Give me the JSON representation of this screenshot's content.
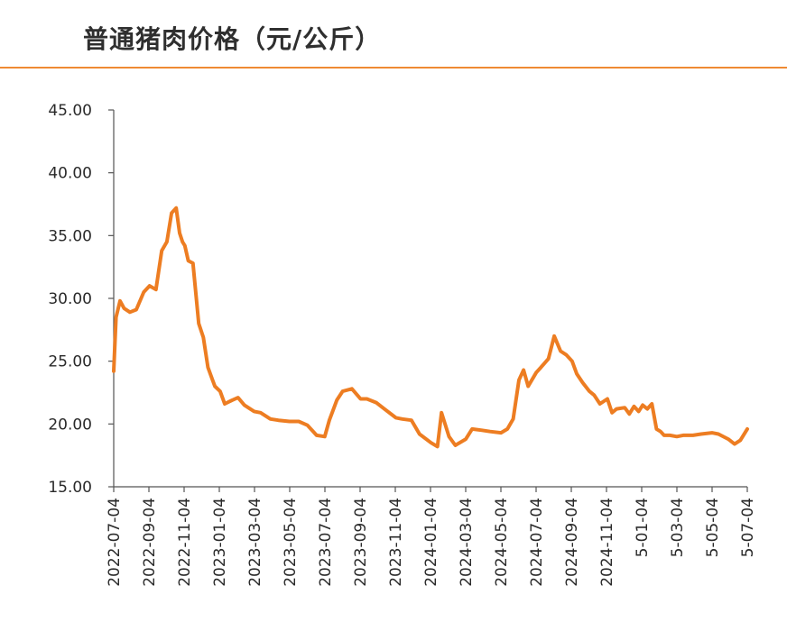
{
  "chart_data": {
    "type": "line",
    "title": "普通猪肉价格（元/公斤）",
    "xlabel": "",
    "ylabel": "",
    "ylim": [
      15,
      45
    ],
    "y_ticks": [
      "45.00",
      "40.00",
      "35.00",
      "30.00",
      "25.00",
      "20.00",
      "15.00"
    ],
    "x_ticks": [
      "2022-07-04",
      "2022-09-04",
      "2022-11-04",
      "2023-01-04",
      "2023-03-04",
      "2023-05-04",
      "2023-07-04",
      "2023-09-04",
      "2023-11-04",
      "2024-01-04",
      "2024-03-04",
      "2024-05-04",
      "2024-07-04",
      "2024-09-04",
      "2024-11-04",
      "5-01-04",
      "5-03-04",
      "5-05-04",
      "5-07-04"
    ],
    "grid": false,
    "colors": {
      "line": "#ed7d22",
      "title_rule": "#ef8a33",
      "axis": "#555555",
      "text": "#2a2a2a"
    },
    "series": [
      {
        "name": "",
        "x": [
          "2022-07-04",
          "2022-07-08",
          "2022-07-15",
          "2022-07-22",
          "2022-08-01",
          "2022-08-12",
          "2022-08-25",
          "2022-09-04",
          "2022-09-15",
          "2022-09-25",
          "2022-10-04",
          "2022-10-12",
          "2022-10-20",
          "2022-10-26",
          "2022-10-31",
          "2022-11-04",
          "2022-11-10",
          "2022-11-18",
          "2022-11-28",
          "2022-12-06",
          "2022-12-14",
          "2022-12-22",
          "2022-12-26",
          "2023-01-04",
          "2023-01-12",
          "2023-01-25",
          "2023-02-04",
          "2023-02-15",
          "2023-03-04",
          "2023-03-15",
          "2023-04-01",
          "2023-04-15",
          "2023-05-04",
          "2023-05-20",
          "2023-06-04",
          "2023-06-20",
          "2023-07-04",
          "2023-07-12",
          "2023-07-25",
          "2023-08-04",
          "2023-08-20",
          "2023-09-04",
          "2023-09-15",
          "2023-10-01",
          "2023-10-15",
          "2023-11-04",
          "2023-11-15",
          "2023-12-01",
          "2023-12-15",
          "2024-01-04",
          "2024-01-15",
          "2024-01-22",
          "2024-02-04",
          "2024-02-15",
          "2024-03-04",
          "2024-03-15",
          "2024-04-01",
          "2024-04-15",
          "2024-05-04",
          "2024-05-15",
          "2024-05-25",
          "2024-06-04",
          "2024-06-12",
          "2024-06-20",
          "2024-07-04",
          "2024-07-12",
          "2024-07-25",
          "2024-08-04",
          "2024-08-15",
          "2024-08-25",
          "2024-09-04",
          "2024-09-12",
          "2024-09-22",
          "2024-10-04",
          "2024-10-12",
          "2024-10-22",
          "2024-11-04",
          "2024-11-12",
          "2024-11-20",
          "2024-12-04",
          "2024-12-12",
          "2024-12-20",
          "2024-12-28",
          "2025-01-04",
          "2025-01-12",
          "2025-01-20",
          "2025-01-28",
          "2025-02-04",
          "2025-02-10",
          "2025-02-20",
          "2025-03-04",
          "2025-03-15",
          "2025-04-01",
          "2025-04-15",
          "2025-05-04",
          "2025-05-15",
          "2025-06-01",
          "2025-06-12",
          "2025-06-22",
          "2025-07-04"
        ],
        "values": [
          24.2,
          28.5,
          29.8,
          29.2,
          28.9,
          29.1,
          30.5,
          31.0,
          30.7,
          33.8,
          34.5,
          36.8,
          37.2,
          35.2,
          34.5,
          34.2,
          33.0,
          32.8,
          28.0,
          26.9,
          24.5,
          23.5,
          23.0,
          22.6,
          21.6,
          21.9,
          22.1,
          21.5,
          21.0,
          20.9,
          20.4,
          20.3,
          20.2,
          20.2,
          19.9,
          19.1,
          19.0,
          20.3,
          21.9,
          22.6,
          22.8,
          22.0,
          22.0,
          21.7,
          21.2,
          20.5,
          20.4,
          20.3,
          19.2,
          18.5,
          18.2,
          20.9,
          19.0,
          18.3,
          18.8,
          19.6,
          19.5,
          19.4,
          19.3,
          19.6,
          20.4,
          23.5,
          24.3,
          23.0,
          24.1,
          24.5,
          25.2,
          27.0,
          25.8,
          25.5,
          25.0,
          24.0,
          23.3,
          22.6,
          22.3,
          21.6,
          22.0,
          20.9,
          21.2,
          21.3,
          20.8,
          21.4,
          21.0,
          21.5,
          21.2,
          21.6,
          19.6,
          19.4,
          19.1,
          19.1,
          19.0,
          19.1,
          19.1,
          19.2,
          19.3,
          19.2,
          18.8,
          18.4,
          18.7,
          19.6
        ]
      }
    ]
  }
}
